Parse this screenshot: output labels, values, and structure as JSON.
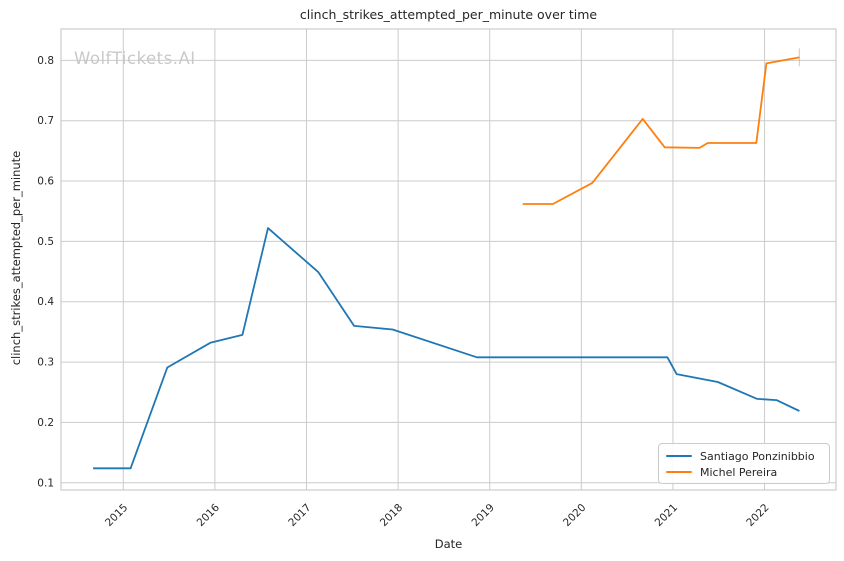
{
  "title": "clinch_strikes_attempted_per_minute over time",
  "watermark": "WolfTickets.AI",
  "colors": {
    "series_blue": "#1f77b4",
    "series_orange": "#ff7f0e",
    "grid": "#cccccc",
    "spine": "#cccccc",
    "text": "#262626",
    "watermark": "#c9c9c9",
    "background": "#ffffff"
  },
  "chart_data": {
    "type": "line",
    "title": "clinch_strikes_attempted_per_minute over time",
    "xlabel": "Date",
    "ylabel": "clinch_strikes_attempted_per_minute",
    "xlim": [
      2014.32,
      2022.78
    ],
    "ylim": [
      0.088,
      0.852
    ],
    "xticks": [
      2015,
      2016,
      2017,
      2018,
      2019,
      2020,
      2021,
      2022
    ],
    "yticks": [
      0.1,
      0.2,
      0.3,
      0.4,
      0.5,
      0.6,
      0.7,
      0.8
    ],
    "grid": true,
    "legend_position": "lower right",
    "series": [
      {
        "name": "Santiago Ponzinibbio",
        "color": "#1f77b4",
        "end_marker": "none",
        "points": [
          [
            2014.67,
            0.124
          ],
          [
            2015.08,
            0.124
          ],
          [
            2015.48,
            0.291
          ],
          [
            2015.95,
            0.332
          ],
          [
            2016.3,
            0.345
          ],
          [
            2016.58,
            0.522
          ],
          [
            2017.13,
            0.449
          ],
          [
            2017.52,
            0.36
          ],
          [
            2017.94,
            0.354
          ],
          [
            2018.86,
            0.308
          ],
          [
            2020.94,
            0.308
          ],
          [
            2021.04,
            0.28
          ],
          [
            2021.49,
            0.267
          ],
          [
            2021.92,
            0.239
          ],
          [
            2022.13,
            0.237
          ],
          [
            2022.38,
            0.219
          ]
        ]
      },
      {
        "name": "Michel Pereira",
        "color": "#ff7f0e",
        "end_marker": "tick",
        "points": [
          [
            2019.36,
            0.562
          ],
          [
            2019.69,
            0.562
          ],
          [
            2020.12,
            0.597
          ],
          [
            2020.67,
            0.703
          ],
          [
            2020.91,
            0.656
          ],
          [
            2021.29,
            0.655
          ],
          [
            2021.38,
            0.663
          ],
          [
            2021.91,
            0.663
          ],
          [
            2022.02,
            0.795
          ],
          [
            2022.38,
            0.805
          ]
        ]
      }
    ]
  }
}
